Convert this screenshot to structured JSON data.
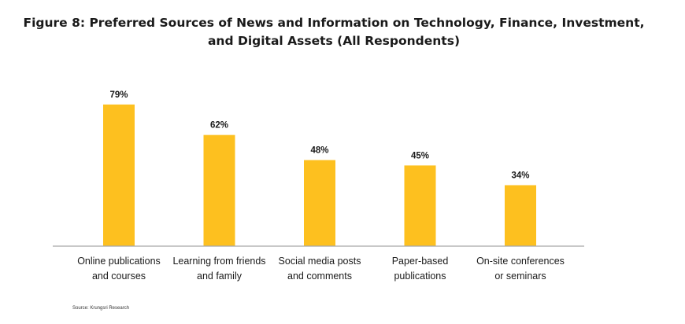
{
  "header": {
    "title_line1": "Figure 8: Preferred Sources of News and Information on Technology, Finance, Investment,",
    "title_line2": "and Digital Assets (All Respondents)"
  },
  "footer": {
    "source": "Source: Krungsri Research"
  },
  "colors": {
    "bar": "#FDC01F",
    "axis": "#a6a6a6",
    "text": "#1a1a1a"
  },
  "chart_data": {
    "type": "bar",
    "title": "Figure 8: Preferred Sources of News and Information on Technology, Finance, Investment, and Digital Assets (All Respondents)",
    "categories": [
      [
        "Online publications",
        "and courses"
      ],
      [
        "Learning from friends",
        "and family"
      ],
      [
        "Social media posts",
        "and comments"
      ],
      [
        "Paper-based",
        "publications"
      ],
      [
        "On-site conferences",
        "or seminars"
      ]
    ],
    "values": [
      79,
      62,
      48,
      45,
      34
    ],
    "data_labels": [
      "79%",
      "62%",
      "48%",
      "45%",
      "34%"
    ],
    "ylim": [
      0,
      100
    ],
    "grid": false,
    "legend": "none"
  }
}
